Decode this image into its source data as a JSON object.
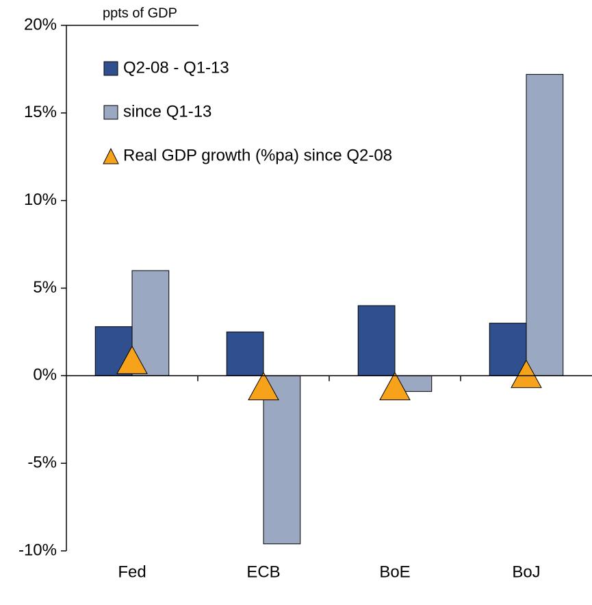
{
  "chart_data": {
    "type": "bar",
    "title": "ppts of GDP",
    "categories": [
      "Fed",
      "ECB",
      "BoE",
      "BoJ"
    ],
    "series": [
      {
        "name": "Q2-08 - Q1-13",
        "color": "#2f4f8f",
        "type": "bar",
        "values": [
          2.8,
          2.5,
          4.0,
          3.0
        ]
      },
      {
        "name": "since Q1-13",
        "color": "#9aa8c2",
        "type": "bar",
        "values": [
          6.0,
          -9.6,
          -0.9,
          17.2
        ]
      },
      {
        "name": "Real GDP growth (%pa) since Q2-08",
        "color": "#f7a21b",
        "type": "scatter",
        "marker": "triangle",
        "values": [
          0.9,
          -0.6,
          -0.6,
          0.1
        ]
      }
    ],
    "ylim": [
      -10,
      20
    ],
    "yticks": [
      {
        "value": -10,
        "label": "-10%"
      },
      {
        "value": -5,
        "label": "-5%"
      },
      {
        "value": 0,
        "label": "0%"
      },
      {
        "value": 5,
        "label": "5%"
      },
      {
        "value": 10,
        "label": "10%"
      },
      {
        "value": 15,
        "label": "15%"
      },
      {
        "value": 20,
        "label": "20%"
      }
    ],
    "legend": "upper left"
  }
}
